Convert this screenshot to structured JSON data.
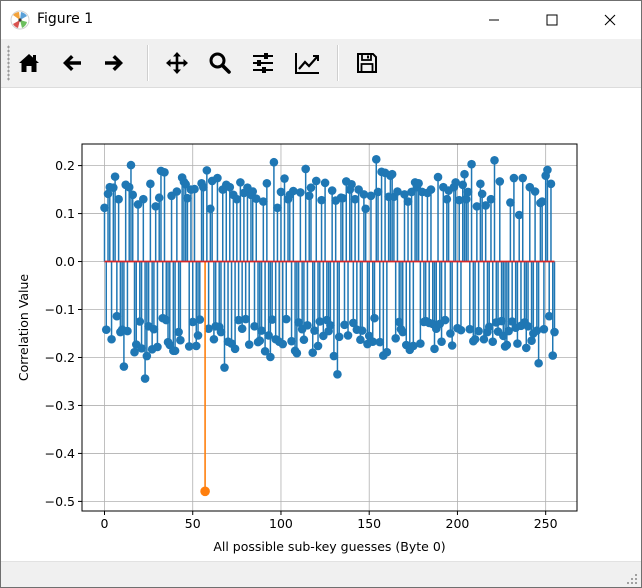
{
  "window": {
    "title": "Figure 1"
  },
  "toolbar": {
    "buttons": [
      {
        "name": "home-button",
        "icon": "home-icon"
      },
      {
        "name": "back-button",
        "icon": "arrow-left-icon"
      },
      {
        "name": "forward-button",
        "icon": "arrow-right-icon"
      },
      {
        "name": "pan-button",
        "icon": "move-icon"
      },
      {
        "name": "zoom-button",
        "icon": "magnifier-icon"
      },
      {
        "name": "subplots-button",
        "icon": "sliders-icon"
      },
      {
        "name": "axes-button",
        "icon": "line-chart-icon"
      },
      {
        "name": "save-button",
        "icon": "floppy-disk-icon"
      }
    ]
  },
  "chart_data": {
    "type": "stem",
    "title": "",
    "xlabel": "All possible sub-key guesses (Byte 0)",
    "ylabel": "Correlation Value",
    "xlim": [
      -12.75,
      267.75
    ],
    "ylim": [
      -0.52,
      0.245
    ],
    "xticks": [
      0,
      50,
      100,
      150,
      200,
      250
    ],
    "yticks": [
      -0.5,
      -0.4,
      -0.3,
      -0.2,
      -0.1,
      0.0,
      0.1,
      0.2
    ],
    "xtick_labels": [
      "0",
      "50",
      "100",
      "150",
      "200",
      "250"
    ],
    "ytick_labels": [
      "−0.5",
      "−0.4",
      "−0.3",
      "−0.2",
      "−0.1",
      "0.0",
      "0.1",
      "0.2"
    ],
    "grid": true,
    "baseline": 0.0,
    "colors": {
      "stems": "#1f77b4",
      "highlight": "#ff7f0e",
      "baseline": "#d62728"
    },
    "series": [
      {
        "values": [
          0.112,
          -0.142,
          0.141,
          0.155,
          -0.162,
          0.154,
          0.177,
          -0.114,
          0.13,
          -0.147,
          -0.142,
          -0.219,
          0.16,
          -0.145,
          0.155,
          0.201,
          0.139,
          -0.189,
          -0.173,
          0.119,
          -0.125,
          -0.181,
          0.13,
          -0.244,
          -0.197,
          -0.135,
          0.162,
          -0.183,
          -0.141,
          0.115,
          -0.178,
          0.133,
          0.189,
          -0.118,
          0.186,
          -0.122,
          -0.168,
          -0.174,
          0.137,
          -0.186,
          -0.186,
          0.146,
          -0.147,
          -0.164,
          0.175,
          0.166,
          0.161,
          0.132,
          -0.177,
          0.15,
          -0.126,
          0.151,
          -0.176,
          -0.154,
          -0.121,
          0.163,
          0.155,
          -0.479,
          0.19,
          -0.14,
          0.11,
          0.168,
          -0.162,
          -0.135,
          0.174,
          -0.136,
          -0.147,
          0.15,
          -0.221,
          0.16,
          -0.167,
          0.155,
          -0.171,
          0.139,
          -0.182,
          0.13,
          -0.122,
          0.165,
          -0.14,
          0.143,
          -0.12,
          0.154,
          -0.173,
          0.139,
          0.146,
          -0.135,
          0.131,
          -0.168,
          -0.165,
          -0.144,
          0.125,
          -0.187,
          0.163,
          -0.154,
          -0.199,
          -0.121,
          0.207,
          -0.162,
          0.112,
          -0.167,
          0.145,
          -0.172,
          0.173,
          -0.12,
          0.13,
          0.139,
          -0.166,
          0.147,
          -0.186,
          -0.191,
          -0.127,
          0.144,
          -0.141,
          -0.163,
          0.193,
          -0.133,
          0.137,
          0.154,
          -0.19,
          -0.144,
          0.168,
          -0.176,
          -0.125,
          0.128,
          -0.155,
          0.164,
          -0.122,
          -0.145,
          -0.133,
          0.148,
          -0.197,
          0.127,
          -0.235,
          -0.157,
          0.133,
          0.132,
          -0.132,
          0.167,
          -0.154,
          0.15,
          0.161,
          -0.128,
          0.13,
          -0.142,
          0.15,
          -0.163,
          -0.144,
          0.14,
          0.11,
          -0.172,
          -0.155,
          0.137,
          -0.167,
          -0.118,
          0.213,
          0.145,
          -0.168,
          0.187,
          -0.196,
          0.185,
          -0.189,
          0.135,
          0.179,
          0.182,
          0.135,
          -0.16,
          0.146,
          -0.126,
          -0.141,
          -0.147,
          0.14,
          -0.174,
          0.125,
          -0.184,
          0.145,
          -0.176,
          0.165,
          0.155,
          0.163,
          -0.171,
          0.145,
          -0.126,
          -0.124,
          0.143,
          -0.128,
          0.15,
          -0.13,
          -0.182,
          -0.14,
          0.176,
          -0.13,
          -0.167,
          0.155,
          -0.122,
          0.13,
          0.148,
          -0.15,
          -0.175,
          0.155,
          0.165,
          -0.139,
          0.128,
          -0.143,
          0.16,
          0.182,
          0.13,
          0.145,
          -0.141,
          0.203,
          -0.166,
          -0.162,
          0.115,
          -0.145,
          0.162,
          0.141,
          -0.162,
          0.117,
          -0.147,
          -0.136,
          0.13,
          -0.167,
          0.211,
          -0.127,
          -0.146,
          0.167,
          -0.124,
          -0.155,
          -0.177,
          -0.174,
          -0.145,
          0.123,
          -0.125,
          0.174,
          -0.138,
          -0.171,
          0.097,
          -0.134,
          0.174,
          -0.127,
          -0.18,
          -0.135,
          0.155,
          -0.165,
          -0.15,
          0.146,
          -0.144,
          -0.212,
          0.122,
          0.125,
          -0.141,
          0.179,
          0.191,
          -0.114,
          0.162,
          -0.196,
          -0.147
        ]
      }
    ],
    "highlight_index": 57
  }
}
